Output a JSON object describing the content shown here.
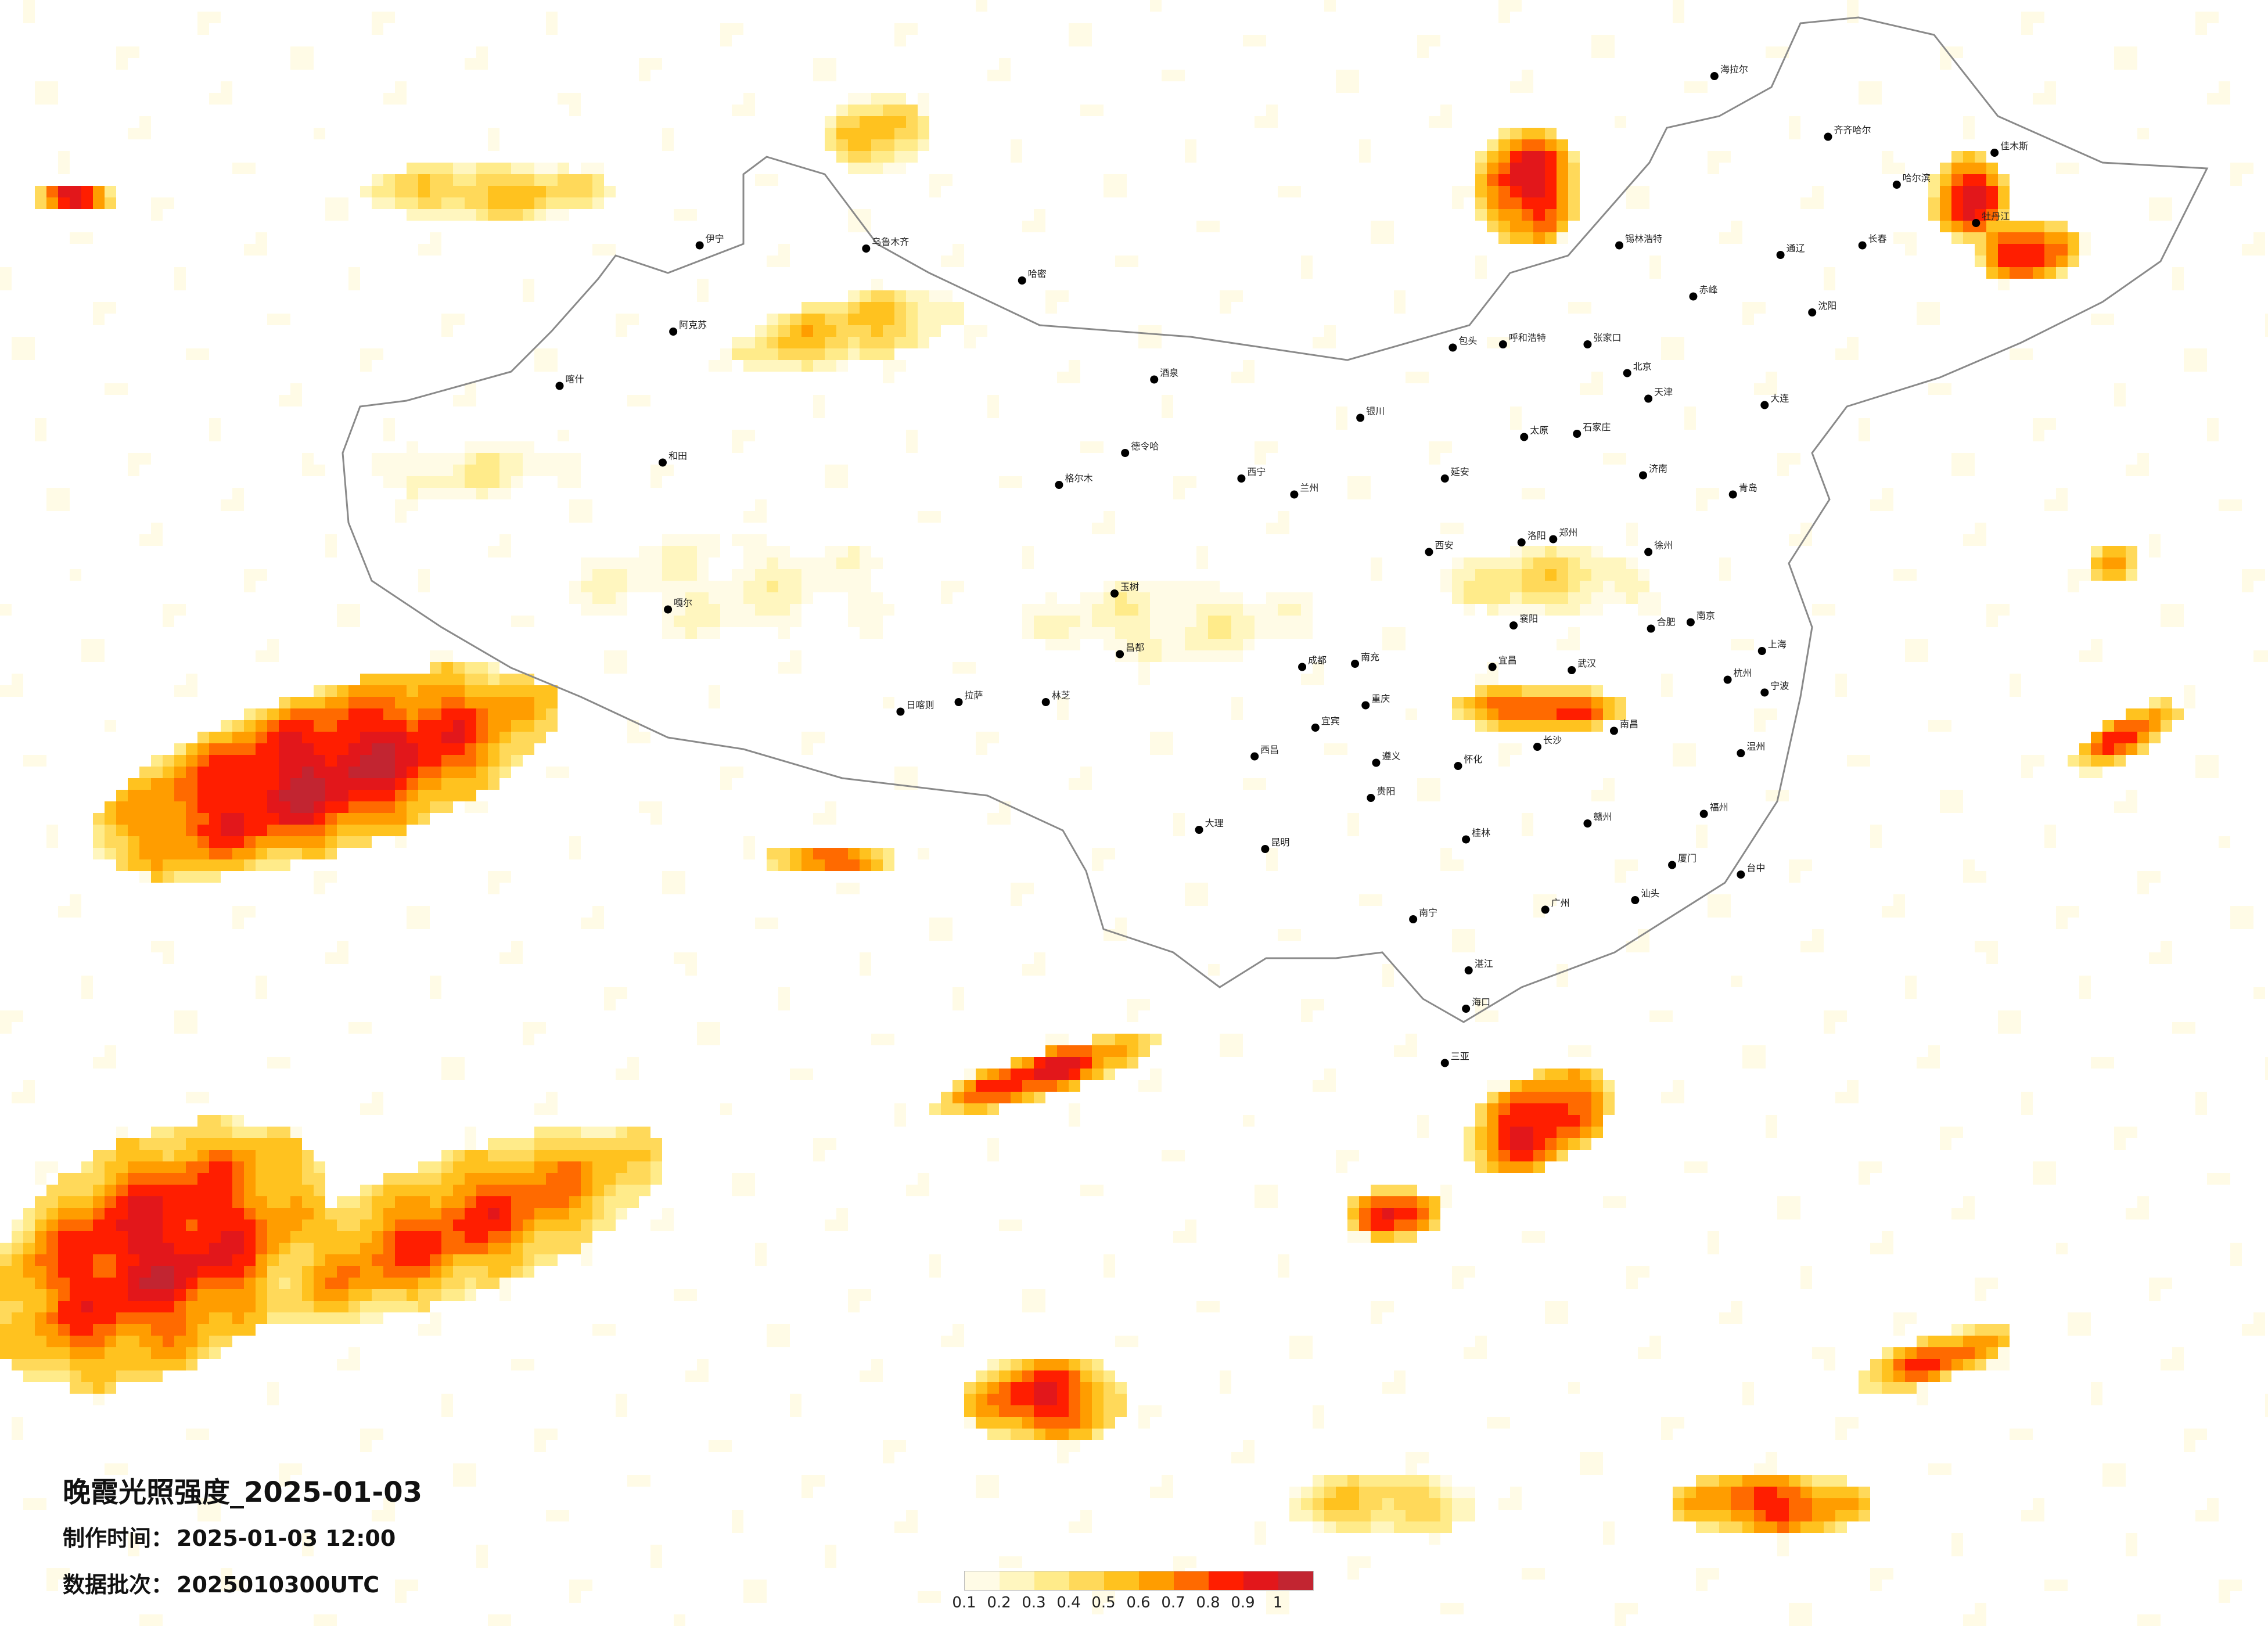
{
  "title": "晚霞光照强度_2025-01-03",
  "made_time": {
    "label": "制作时间：",
    "value": "2025-01-03 12:00"
  },
  "batch": {
    "label": "数据批次：",
    "value": "2025010300UTC"
  },
  "legend": {
    "labels": [
      "0.1",
      "0.2",
      "0.3",
      "0.4",
      "0.5",
      "0.6",
      "0.7",
      "0.8",
      "0.9",
      "1"
    ],
    "colors": [
      "#fffbe6",
      "#fff6bf",
      "#ffeb8a",
      "#ffd95a",
      "#ffc21f",
      "#ff9d00",
      "#ff6a00",
      "#ff1e00",
      "#e2171b",
      "#c22531"
    ]
  },
  "cities": [
    {
      "name": "哈尔滨",
      "lon": 126.6,
      "lat": 45.8
    },
    {
      "name": "长春",
      "lon": 125.3,
      "lat": 43.9
    },
    {
      "name": "沈阳",
      "lon": 123.4,
      "lat": 41.8
    },
    {
      "name": "北京",
      "lon": 116.4,
      "lat": 39.9
    },
    {
      "name": "天津",
      "lon": 117.2,
      "lat": 39.1
    },
    {
      "name": "石家庄",
      "lon": 114.5,
      "lat": 38.0
    },
    {
      "name": "太原",
      "lon": 112.5,
      "lat": 37.9
    },
    {
      "name": "呼和浩特",
      "lon": 111.7,
      "lat": 40.8
    },
    {
      "name": "济南",
      "lon": 117.0,
      "lat": 36.7
    },
    {
      "name": "郑州",
      "lon": 113.6,
      "lat": 34.7
    },
    {
      "name": "西安",
      "lon": 108.9,
      "lat": 34.3
    },
    {
      "name": "兰州",
      "lon": 103.8,
      "lat": 36.1
    },
    {
      "name": "西宁",
      "lon": 101.8,
      "lat": 36.6
    },
    {
      "name": "银川",
      "lon": 106.3,
      "lat": 38.5
    },
    {
      "name": "乌鲁木齐",
      "lon": 87.6,
      "lat": 43.8
    },
    {
      "name": "拉萨",
      "lon": 91.1,
      "lat": 29.6
    },
    {
      "name": "成都",
      "lon": 104.1,
      "lat": 30.7
    },
    {
      "name": "重庆",
      "lon": 106.5,
      "lat": 29.5
    },
    {
      "name": "贵阳",
      "lon": 106.7,
      "lat": 26.6
    },
    {
      "name": "昆明",
      "lon": 102.7,
      "lat": 25.0
    },
    {
      "name": "南宁",
      "lon": 108.3,
      "lat": 22.8
    },
    {
      "name": "广州",
      "lon": 113.3,
      "lat": 23.1
    },
    {
      "name": "海口",
      "lon": 110.3,
      "lat": 20.0
    },
    {
      "name": "长沙",
      "lon": 113.0,
      "lat": 28.2
    },
    {
      "name": "武汉",
      "lon": 114.3,
      "lat": 30.6
    },
    {
      "name": "南昌",
      "lon": 115.9,
      "lat": 28.7
    },
    {
      "name": "福州",
      "lon": 119.3,
      "lat": 26.1
    },
    {
      "name": "杭州",
      "lon": 120.2,
      "lat": 30.3
    },
    {
      "name": "南京",
      "lon": 118.8,
      "lat": 32.1
    },
    {
      "name": "合肥",
      "lon": 117.3,
      "lat": 31.9
    },
    {
      "name": "上海",
      "lon": 121.5,
      "lat": 31.2
    },
    {
      "name": "台中",
      "lon": 120.7,
      "lat": 24.2
    },
    {
      "name": "喀什",
      "lon": 76.0,
      "lat": 39.5
    },
    {
      "name": "和田",
      "lon": 79.9,
      "lat": 37.1
    },
    {
      "name": "阿克苏",
      "lon": 80.3,
      "lat": 41.2
    },
    {
      "name": "伊宁",
      "lon": 81.3,
      "lat": 43.9
    },
    {
      "name": "哈密",
      "lon": 93.5,
      "lat": 42.8
    },
    {
      "name": "格尔木",
      "lon": 94.9,
      "lat": 36.4
    },
    {
      "name": "齐齐哈尔",
      "lon": 124.0,
      "lat": 47.3
    },
    {
      "name": "佳木斯",
      "lon": 130.3,
      "lat": 46.8
    },
    {
      "name": "牡丹江",
      "lon": 129.6,
      "lat": 44.6
    },
    {
      "name": "海拉尔",
      "lon": 119.7,
      "lat": 49.2
    },
    {
      "name": "大连",
      "lon": 121.6,
      "lat": 38.9
    },
    {
      "name": "青岛",
      "lon": 120.4,
      "lat": 36.1
    },
    {
      "name": "厦门",
      "lon": 118.1,
      "lat": 24.5
    },
    {
      "name": "桂林",
      "lon": 110.3,
      "lat": 25.3
    },
    {
      "name": "大理",
      "lon": 100.2,
      "lat": 25.6
    },
    {
      "name": "西昌",
      "lon": 102.3,
      "lat": 27.9
    },
    {
      "name": "延安",
      "lon": 109.5,
      "lat": 36.6
    },
    {
      "name": "包头",
      "lon": 109.8,
      "lat": 40.7
    },
    {
      "name": "张家口",
      "lon": 114.9,
      "lat": 40.8
    },
    {
      "name": "锡林浩特",
      "lon": 116.1,
      "lat": 43.9
    },
    {
      "name": "赤峰",
      "lon": 118.9,
      "lat": 42.3
    },
    {
      "name": "通辽",
      "lon": 122.2,
      "lat": 43.6
    },
    {
      "name": "德令哈",
      "lon": 97.4,
      "lat": 37.4
    },
    {
      "name": "酒泉",
      "lon": 98.5,
      "lat": 39.7
    },
    {
      "name": "嘎尔",
      "lon": 80.1,
      "lat": 32.5
    },
    {
      "name": "日喀则",
      "lon": 88.9,
      "lat": 29.3
    },
    {
      "name": "林芝",
      "lon": 94.4,
      "lat": 29.6
    },
    {
      "name": "昌都",
      "lon": 97.2,
      "lat": 31.1
    },
    {
      "name": "玉树",
      "lon": 97.0,
      "lat": 33.0
    },
    {
      "name": "宜宾",
      "lon": 104.6,
      "lat": 28.8
    },
    {
      "name": "南充",
      "lon": 106.1,
      "lat": 30.8
    },
    {
      "name": "遵义",
      "lon": 106.9,
      "lat": 27.7
    },
    {
      "name": "怀化",
      "lon": 110.0,
      "lat": 27.6
    },
    {
      "name": "赣州",
      "lon": 114.9,
      "lat": 25.8
    },
    {
      "name": "汕头",
      "lon": 116.7,
      "lat": 23.4
    },
    {
      "name": "湛江",
      "lon": 110.4,
      "lat": 21.2
    },
    {
      "name": "三亚",
      "lon": 109.5,
      "lat": 18.3
    },
    {
      "name": "洛阳",
      "lon": 112.4,
      "lat": 34.6
    },
    {
      "name": "徐州",
      "lon": 117.2,
      "lat": 34.3
    },
    {
      "name": "宜昌",
      "lon": 111.3,
      "lat": 30.7
    },
    {
      "name": "襄阳",
      "lon": 112.1,
      "lat": 32.0
    },
    {
      "name": "温州",
      "lon": 120.7,
      "lat": 28.0
    },
    {
      "name": "宁波",
      "lon": 121.6,
      "lat": 29.9
    }
  ]
}
